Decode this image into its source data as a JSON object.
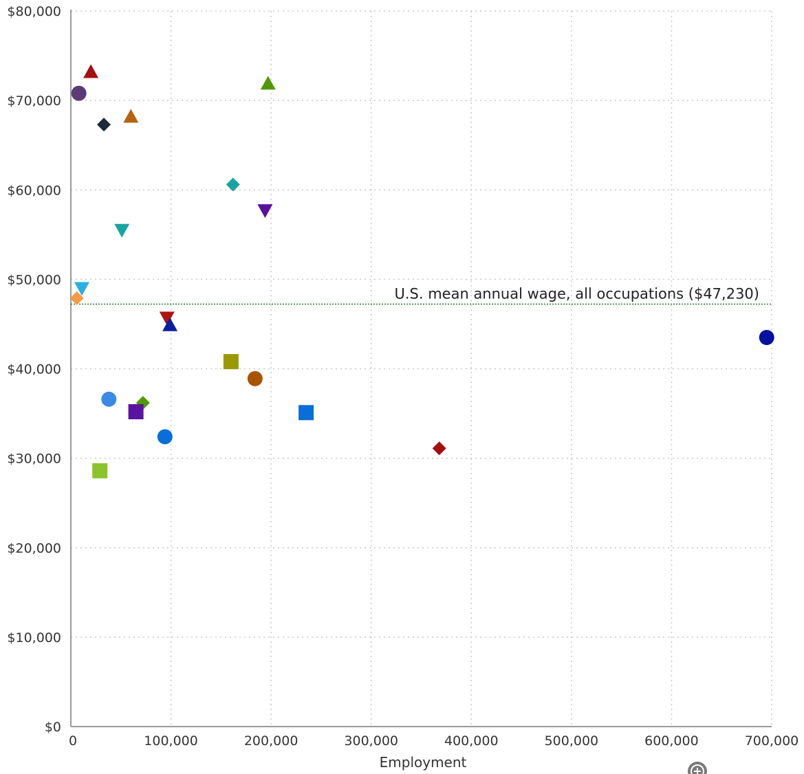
{
  "chart_data": {
    "type": "scatter",
    "xlabel": "Employment",
    "ylabel": "",
    "xlim": [
      0,
      700000
    ],
    "ylim": [
      0,
      80000
    ],
    "x_ticks": [
      0,
      100000,
      200000,
      300000,
      400000,
      500000,
      600000,
      700000
    ],
    "x_tick_labels": [
      "0",
      "100,000",
      "200,000",
      "300,000",
      "400,000",
      "500,000",
      "600,000",
      "700,000"
    ],
    "y_ticks": [
      0,
      10000,
      20000,
      30000,
      40000,
      50000,
      60000,
      70000,
      80000
    ],
    "y_tick_labels": [
      "$0",
      "$10,000",
      "$20,000",
      "$30,000",
      "$40,000",
      "$50,000",
      "$60,000",
      "$70,000",
      "$80,000"
    ],
    "grid": true,
    "reference_line": {
      "y": 47230,
      "label": "U.S. mean annual wage, all occupations ($47,230)",
      "color": "#2a8a2a"
    },
    "points": [
      {
        "x": 8000,
        "y": 70800,
        "marker": "circle",
        "color": "#5b3a7a"
      },
      {
        "x": 20000,
        "y": 73200,
        "marker": "triangle-up",
        "color": "#a40f0f"
      },
      {
        "x": 33000,
        "y": 67300,
        "marker": "diamond",
        "color": "#1c2b3a"
      },
      {
        "x": 60000,
        "y": 68200,
        "marker": "triangle-up",
        "color": "#b56212"
      },
      {
        "x": 197000,
        "y": 71900,
        "marker": "triangle-up",
        "color": "#4e9a06"
      },
      {
        "x": 162000,
        "y": 60600,
        "marker": "diamond",
        "color": "#1aa3a3"
      },
      {
        "x": 194000,
        "y": 57700,
        "marker": "triangle-down",
        "color": "#5a0fa0"
      },
      {
        "x": 51000,
        "y": 55500,
        "marker": "triangle-down",
        "color": "#1aa3a3"
      },
      {
        "x": 11000,
        "y": 49000,
        "marker": "triangle-down",
        "color": "#29b0e0"
      },
      {
        "x": 6000,
        "y": 47900,
        "marker": "diamond",
        "color": "#f59a45"
      },
      {
        "x": 96000,
        "y": 45700,
        "marker": "triangle-down",
        "color": "#b01010"
      },
      {
        "x": 99000,
        "y": 44900,
        "marker": "triangle-up",
        "color": "#0b1f9e"
      },
      {
        "x": 695000,
        "y": 43500,
        "marker": "circle",
        "color": "#0010a0"
      },
      {
        "x": 160000,
        "y": 40800,
        "marker": "square",
        "color": "#9a9a00"
      },
      {
        "x": 184000,
        "y": 38900,
        "marker": "circle",
        "color": "#a85400"
      },
      {
        "x": 38000,
        "y": 36600,
        "marker": "circle",
        "color": "#3a8ae6"
      },
      {
        "x": 72000,
        "y": 36200,
        "marker": "diamond",
        "color": "#4e9a06"
      },
      {
        "x": 65000,
        "y": 35200,
        "marker": "square",
        "color": "#5a12a0"
      },
      {
        "x": 235000,
        "y": 35100,
        "marker": "square",
        "color": "#0a6ed8"
      },
      {
        "x": 94000,
        "y": 32400,
        "marker": "circle",
        "color": "#0a6ed8"
      },
      {
        "x": 368000,
        "y": 31100,
        "marker": "diamond",
        "color": "#a40f0f"
      },
      {
        "x": 29000,
        "y": 28600,
        "marker": "square",
        "color": "#8cc32a"
      }
    ]
  },
  "zoom_control": {
    "icon": "zoom-icon",
    "color": "#777777"
  }
}
